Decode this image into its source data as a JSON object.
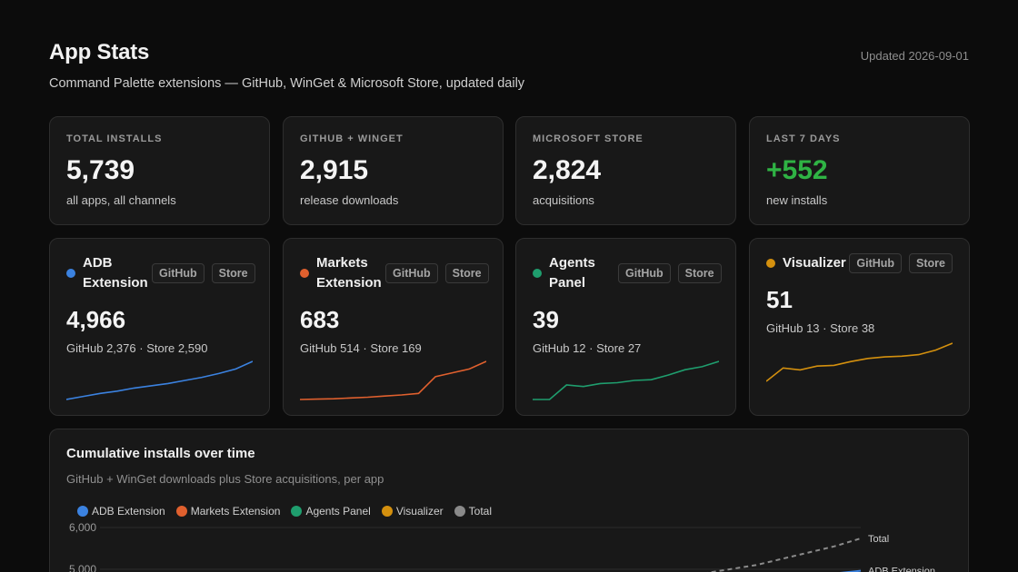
{
  "header": {
    "title": "App Stats",
    "subtitle": "Command Palette extensions — GitHub, WinGet & Microsoft Store, updated daily",
    "updated": "Updated 2026-09-01"
  },
  "stats": [
    {
      "label": "TOTAL INSTALLS",
      "value": "5,739",
      "note": "all apps, all channels"
    },
    {
      "label": "GITHUB + WINGET",
      "value": "2,915",
      "note": "release downloads"
    },
    {
      "label": "MICROSOFT STORE",
      "value": "2,824",
      "note": "acquisitions"
    },
    {
      "label": "LAST 7 DAYS",
      "value": "+552",
      "note": "new installs"
    }
  ],
  "apps": [
    {
      "name": "ADB Extension",
      "color": "#3b82e0",
      "value": "4,966",
      "github": "GitHub 2,376",
      "store": "Store 2,590",
      "spark": [
        0,
        0.08,
        0.16,
        0.22,
        0.3,
        0.36,
        0.42,
        0.5,
        0.58,
        0.68,
        0.8,
        1
      ]
    },
    {
      "name": "Markets Extension",
      "color": "#e0602e",
      "value": "683",
      "github": "GitHub 514",
      "store": "Store 169",
      "spark": [
        0,
        0.01,
        0.02,
        0.04,
        0.06,
        0.09,
        0.12,
        0.16,
        0.6,
        0.7,
        0.8,
        1
      ]
    },
    {
      "name": "Agents Panel",
      "color": "#1f9e6e",
      "value": "39",
      "github": "GitHub 12",
      "store": "Store 27",
      "spark": [
        0,
        0,
        0.38,
        0.34,
        0.42,
        0.44,
        0.5,
        0.52,
        0.64,
        0.78,
        0.86,
        1
      ]
    },
    {
      "name": "Visualizer",
      "color": "#d4900e",
      "value": "51",
      "github": "GitHub 13",
      "store": "Store 38",
      "spark": [
        0,
        0.35,
        0.3,
        0.4,
        0.42,
        0.52,
        0.6,
        0.64,
        0.66,
        0.7,
        0.82,
        1
      ]
    }
  ],
  "labels": {
    "github_pill": "GitHub",
    "store_pill": "Store",
    "separator": "·"
  },
  "chart": {
    "title": "Cumulative installs over time",
    "subtitle": "GitHub + WinGet downloads plus Store acquisitions, per app",
    "legend": [
      {
        "name": "ADB Extension",
        "color": "#3b82e0"
      },
      {
        "name": "Markets Extension",
        "color": "#e0602e"
      },
      {
        "name": "Agents Panel",
        "color": "#1f9e6e"
      },
      {
        "name": "Visualizer",
        "color": "#d4900e"
      },
      {
        "name": "Total",
        "color": "#8a8a8a"
      }
    ]
  },
  "chart_data": {
    "type": "line",
    "title": "Cumulative installs over time",
    "subtitle": "GitHub + WinGet downloads plus Store acquisitions, per app",
    "y_ticks": [
      6000,
      5000
    ],
    "y_tick_labels": [
      "6,000",
      "5,000"
    ],
    "visible_range": [
      4900,
      6000
    ],
    "series": [
      {
        "name": "Total",
        "color": "#8a8a8a",
        "dashed": true,
        "end_label": "Total",
        "points": [
          [
            0.92,
            4900
          ],
          [
            0.96,
            5000
          ],
          [
            1.0,
            5100
          ],
          [
            1.04,
            5250
          ],
          [
            1.08,
            5400
          ],
          [
            1.12,
            5550
          ],
          [
            1.16,
            5739
          ]
        ]
      },
      {
        "name": "ADB Extension",
        "color": "#3b82e0",
        "dashed": false,
        "end_label": "ADB Extension",
        "points": [
          [
            1.12,
            4900
          ],
          [
            1.16,
            4966
          ]
        ]
      }
    ]
  }
}
